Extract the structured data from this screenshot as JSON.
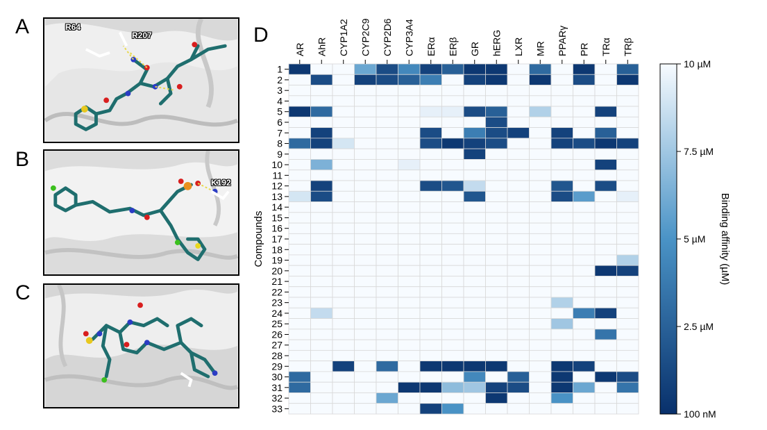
{
  "panels": {
    "A": {
      "label": "A",
      "residues": [
        "R64",
        "R207"
      ]
    },
    "B": {
      "label": "B",
      "residues": [
        "K192"
      ]
    },
    "C": {
      "label": "C",
      "residues": []
    },
    "D": {
      "label": "D"
    }
  },
  "colors": {
    "low": "#f7fbff",
    "mid": "#4a93c6",
    "high": "#08306b",
    "grid": "#d8d8d8"
  },
  "chart_data": {
    "type": "heatmap",
    "title": "",
    "xlabel": "",
    "ylabel": "Compounds",
    "colorbar_label": "Binding affinity (µM)",
    "colorbar_ticks": [
      "10 µM",
      "7.5 µM",
      "5 µM",
      "2.5 µM",
      "100 nM"
    ],
    "colorbar_range": [
      10,
      0.1
    ],
    "columns": [
      "AR",
      "AhR",
      "CYP1A2",
      "CYP2C9",
      "CYP2D6",
      "CYP3A4",
      "ERα",
      "ERβ",
      "GR",
      "hERG",
      "LXR",
      "MR",
      "PPARγ",
      "PR",
      "TRα",
      "TRβ"
    ],
    "rows": [
      "1",
      "2",
      "3",
      "4",
      "5",
      "6",
      "7",
      "8",
      "9",
      "10",
      "11",
      "12",
      "13",
      "14",
      "15",
      "16",
      "17",
      "18",
      "19",
      "20",
      "21",
      "22",
      "23",
      "24",
      "25",
      "26",
      "27",
      "28",
      "29",
      "30",
      "31",
      "32",
      "33"
    ],
    "values": [
      [
        0.5,
        10,
        10,
        6,
        1.5,
        4.5,
        1,
        2.5,
        0.5,
        0.5,
        10,
        3,
        10,
        0.5,
        10,
        2.5
      ],
      [
        10,
        1.5,
        10,
        1,
        1.5,
        2.5,
        4,
        10,
        1,
        0.5,
        10,
        0.5,
        10,
        1.5,
        10,
        0.5
      ],
      [
        10,
        10,
        10,
        10,
        10,
        10,
        10,
        10,
        10,
        10,
        10,
        10,
        10,
        10,
        10,
        10
      ],
      [
        10,
        10,
        10,
        10,
        10,
        10,
        10,
        10,
        10,
        10,
        10,
        10,
        10,
        10,
        10,
        10
      ],
      [
        0.5,
        3,
        10,
        10,
        10,
        10,
        9.5,
        9.5,
        1.5,
        2.5,
        10,
        8,
        10,
        10,
        1,
        10
      ],
      [
        10,
        10,
        10,
        10,
        10,
        10,
        10,
        10,
        10,
        1.5,
        10,
        10,
        10,
        10,
        10,
        10
      ],
      [
        10,
        1,
        10,
        10,
        10,
        10,
        1.5,
        10,
        4,
        1.5,
        1,
        10,
        1,
        10,
        2.5,
        10
      ],
      [
        3,
        1,
        9,
        10,
        10,
        10,
        1.5,
        0.5,
        1,
        1.5,
        10,
        10,
        1,
        1.5,
        0.5,
        1
      ],
      [
        10,
        10,
        10,
        10,
        10,
        10,
        10,
        10,
        1,
        10,
        10,
        10,
        10,
        10,
        10,
        10
      ],
      [
        10,
        6.5,
        10,
        10,
        10,
        9.5,
        10,
        10,
        10,
        10,
        10,
        10,
        10,
        10,
        1,
        10
      ],
      [
        10,
        10,
        10,
        10,
        10,
        10,
        10,
        10,
        10,
        10,
        10,
        10,
        10,
        10,
        10,
        10
      ],
      [
        10,
        1,
        10,
        10,
        10,
        10,
        1.5,
        2,
        8.5,
        10,
        10,
        10,
        2,
        10,
        1.5,
        10
      ],
      [
        9,
        1.5,
        10,
        10,
        10,
        10,
        10,
        10,
        2,
        10,
        10,
        10,
        1.5,
        5.5,
        10,
        9.5
      ],
      [
        10,
        10,
        10,
        10,
        10,
        10,
        10,
        10,
        10,
        10,
        10,
        10,
        10,
        10,
        10,
        10
      ],
      [
        10,
        10,
        10,
        10,
        10,
        10,
        10,
        10,
        10,
        10,
        10,
        10,
        10,
        10,
        10,
        10
      ],
      [
        10,
        10,
        10,
        10,
        10,
        10,
        10,
        10,
        10,
        10,
        10,
        10,
        10,
        10,
        10,
        10
      ],
      [
        10,
        10,
        10,
        10,
        10,
        10,
        10,
        10,
        10,
        10,
        10,
        10,
        10,
        10,
        10,
        10
      ],
      [
        10,
        10,
        10,
        10,
        10,
        10,
        10,
        10,
        10,
        10,
        10,
        10,
        10,
        10,
        10,
        10
      ],
      [
        10,
        10,
        10,
        10,
        10,
        10,
        10,
        10,
        10,
        10,
        10,
        10,
        10,
        10,
        10,
        8
      ],
      [
        10,
        10,
        10,
        10,
        10,
        10,
        10,
        10,
        10,
        10,
        10,
        10,
        10,
        10,
        0.5,
        1
      ],
      [
        10,
        10,
        10,
        10,
        10,
        10,
        10,
        10,
        10,
        10,
        10,
        10,
        10,
        10,
        10,
        10
      ],
      [
        10,
        10,
        10,
        10,
        10,
        10,
        10,
        10,
        10,
        10,
        10,
        10,
        10,
        10,
        10,
        10
      ],
      [
        10,
        10,
        10,
        10,
        10,
        10,
        10,
        10,
        10,
        10,
        10,
        10,
        8,
        10,
        10,
        10
      ],
      [
        10,
        8.5,
        10,
        10,
        10,
        10,
        10,
        10,
        10,
        10,
        10,
        10,
        10,
        4,
        1,
        10
      ],
      [
        10,
        10,
        10,
        10,
        10,
        10,
        10,
        10,
        10,
        10,
        10,
        10,
        7.5,
        10,
        10,
        10
      ],
      [
        10,
        10,
        10,
        10,
        10,
        10,
        10,
        10,
        10,
        10,
        10,
        10,
        10,
        10,
        3.5,
        10
      ],
      [
        10,
        10,
        10,
        10,
        10,
        10,
        10,
        10,
        10,
        10,
        10,
        10,
        10,
        10,
        10,
        10
      ],
      [
        10,
        10,
        10,
        10,
        10,
        10,
        10,
        10,
        10,
        10,
        10,
        10,
        10,
        10,
        10,
        10
      ],
      [
        10,
        10,
        1,
        10,
        3,
        10,
        0.5,
        0.5,
        0.5,
        0.5,
        10,
        10,
        0.5,
        1,
        10,
        10
      ],
      [
        3,
        10,
        10,
        10,
        10,
        10,
        10,
        10,
        4.5,
        10,
        2.5,
        10,
        0.5,
        10,
        0.5,
        1.5
      ],
      [
        3,
        10,
        10,
        10,
        10,
        0.5,
        0.5,
        7,
        7.5,
        1,
        1.5,
        10,
        0.5,
        6,
        10,
        3.5
      ],
      [
        10,
        10,
        10,
        10,
        6,
        10,
        10,
        10,
        10,
        0.5,
        10,
        10,
        5,
        10,
        10,
        10
      ],
      [
        10,
        10,
        10,
        10,
        10,
        10,
        1,
        5,
        10,
        10,
        10,
        10,
        10,
        10,
        10,
        10
      ]
    ]
  }
}
